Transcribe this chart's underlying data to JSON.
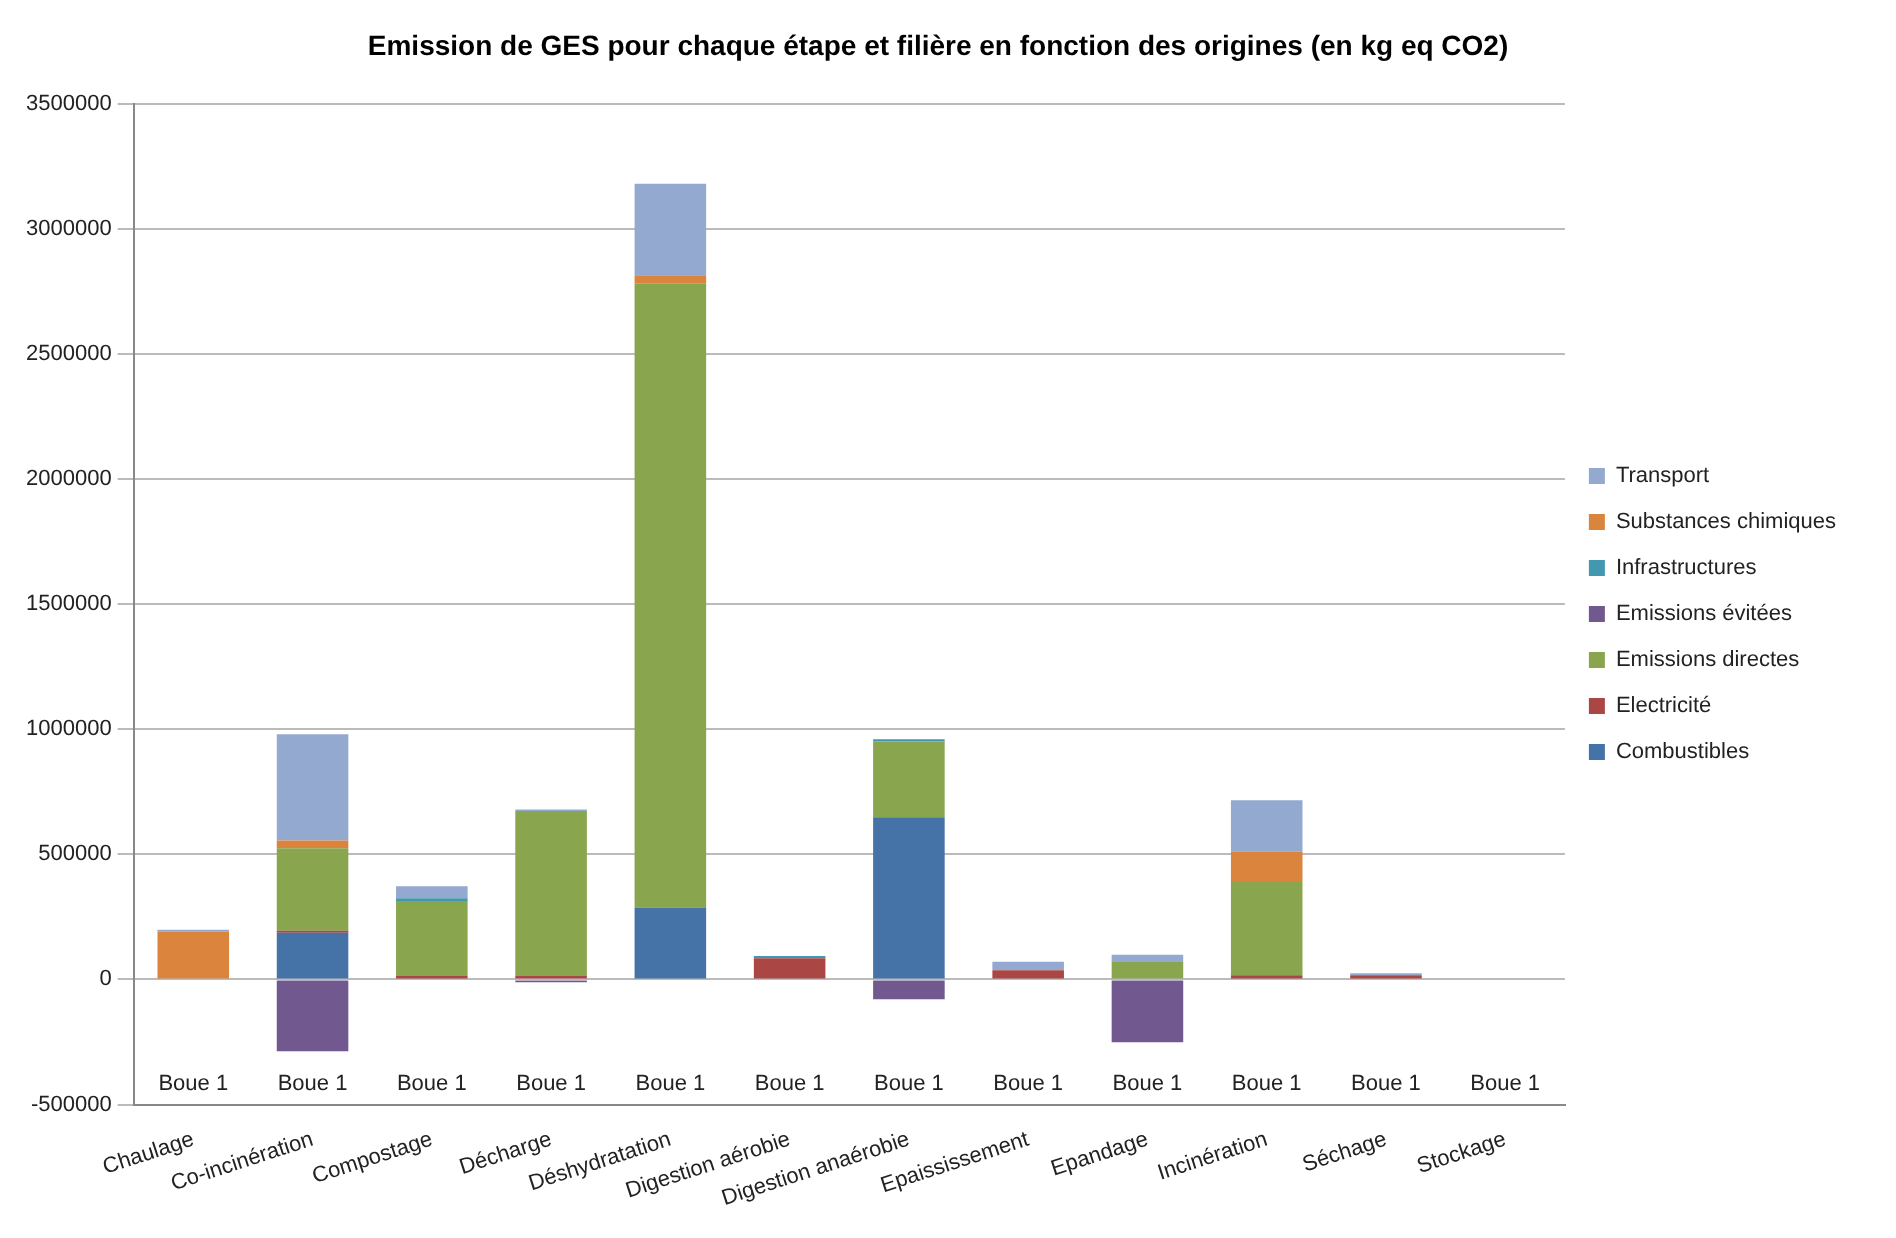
{
  "chart_data": {
    "type": "bar",
    "title": "Emission de GES pour chaque étape et filière en fonction des origines (en kg eq CO2)",
    "categories": [
      "Chaulage",
      "Co-incinération",
      "Compostage",
      "Décharge",
      "Déshydratation",
      "Digestion aérobie",
      "Digestion anaérobie",
      "Epaississement",
      "Epandage",
      "Incinération",
      "Séchage",
      "Stockage"
    ],
    "stacked": true,
    "legend": "right",
    "grid": "y",
    "ylim": [
      -500000,
      3500000
    ],
    "yticks": [
      -500000,
      0,
      500000,
      1000000,
      1500000,
      2000000,
      2500000,
      3000000,
      3500000
    ],
    "series": [
      {
        "name": "Combustibles",
        "color": "#4572a7",
        "values": [
          0,
          186000,
          0,
          0,
          287000,
          0,
          648000,
          0,
          0,
          0,
          0,
          0
        ]
      },
      {
        "name": "Electricité",
        "color": "#aa4643",
        "values": [
          0,
          8000,
          14000,
          14000,
          0,
          85000,
          0,
          37000,
          0,
          17000,
          17000,
          0
        ]
      },
      {
        "name": "Emissions directes",
        "color": "#89a54e",
        "values": [
          0,
          330000,
          299000,
          659000,
          2493000,
          0,
          304000,
          0,
          70000,
          372000,
          0,
          0
        ]
      },
      {
        "name": "Emissions évitées",
        "color": "#71588f",
        "values": [
          0,
          -287000,
          0,
          -11000,
          0,
          0,
          -79000,
          0,
          -251000,
          0,
          0,
          0
        ]
      },
      {
        "name": "Infrastructures",
        "color": "#4198af",
        "values": [
          0,
          0,
          11000,
          0,
          0,
          8000,
          8000,
          0,
          0,
          0,
          0,
          0
        ]
      },
      {
        "name": "Substances chimiques",
        "color": "#db843d",
        "values": [
          190000,
          31000,
          0,
          0,
          34000,
          0,
          0,
          0,
          0,
          121000,
          0,
          0
        ]
      },
      {
        "name": "Transport",
        "color": "#93a9cf",
        "values": [
          8000,
          425000,
          48000,
          6000,
          366000,
          0,
          0,
          34000,
          28000,
          206000,
          8000,
          0
        ]
      }
    ],
    "annotations": [
      "Boue 1",
      "Boue 1",
      "Boue 1",
      "Boue 1",
      "Boue 1",
      "Boue 1",
      "Boue 1",
      "Boue 1",
      "Boue 1",
      "Boue 1",
      "Boue 1",
      "Boue 1"
    ]
  }
}
